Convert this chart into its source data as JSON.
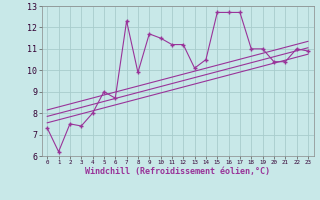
{
  "x": [
    0,
    1,
    2,
    3,
    4,
    5,
    6,
    7,
    8,
    9,
    10,
    11,
    12,
    13,
    14,
    15,
    16,
    17,
    18,
    19,
    20,
    21,
    22,
    23
  ],
  "y_line": [
    7.3,
    6.2,
    7.5,
    7.4,
    8.0,
    9.0,
    8.7,
    12.3,
    9.9,
    11.7,
    11.5,
    11.2,
    11.2,
    10.1,
    10.5,
    12.7,
    12.7,
    12.7,
    11.0,
    11.0,
    10.4,
    10.4,
    11.0,
    10.9
  ],
  "regression_lines": [
    {
      "x0": 0,
      "y0": 7.55,
      "x1": 23,
      "y1": 10.75
    },
    {
      "x0": 0,
      "y0": 7.85,
      "x1": 23,
      "y1": 11.05
    },
    {
      "x0": 0,
      "y0": 8.15,
      "x1": 23,
      "y1": 11.35
    }
  ],
  "color": "#993399",
  "bg_color": "#c8e8e8",
  "grid_color": "#a8cccc",
  "xlim": [
    -0.5,
    23.5
  ],
  "ylim": [
    6,
    13
  ],
  "yticks": [
    6,
    7,
    8,
    9,
    10,
    11,
    12,
    13
  ],
  "xticks": [
    0,
    1,
    2,
    3,
    4,
    5,
    6,
    7,
    8,
    9,
    10,
    11,
    12,
    13,
    14,
    15,
    16,
    17,
    18,
    19,
    20,
    21,
    22,
    23
  ],
  "xlabel": "Windchill (Refroidissement éolien,°C)",
  "title": ""
}
